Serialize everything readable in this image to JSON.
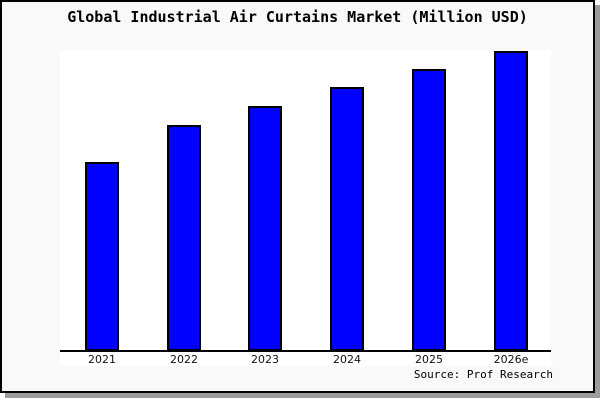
{
  "chart": {
    "title": "Global Industrial Air Curtains Market (Million USD)",
    "source": "Source: Prof Research",
    "colors": {
      "bar_fill": "#0000ff",
      "bar_border": "#000000",
      "canvas_bg": "#f9f9f9",
      "plot_bg": "#ffffff",
      "axis_line": "#000000",
      "frame_border": "#000000",
      "frame_shadow": "#9c9c9c",
      "tick_text": "#111111"
    }
  },
  "chart_data": {
    "type": "bar",
    "title": "Global Industrial Air Curtains Market (Million USD)",
    "categories": [
      "2021",
      "2022",
      "2023",
      "2024",
      "2025",
      "2026e"
    ],
    "values": [
      189,
      226,
      245,
      264,
      282,
      300
    ],
    "value_note": "relative heights; chart shows no y-axis scale or value labels",
    "xlabel": "",
    "ylabel": "",
    "ylim": [
      0,
      301
    ],
    "grid": false,
    "legend": false,
    "y_axis_visible": false,
    "source_note": "Source: Prof Research"
  }
}
